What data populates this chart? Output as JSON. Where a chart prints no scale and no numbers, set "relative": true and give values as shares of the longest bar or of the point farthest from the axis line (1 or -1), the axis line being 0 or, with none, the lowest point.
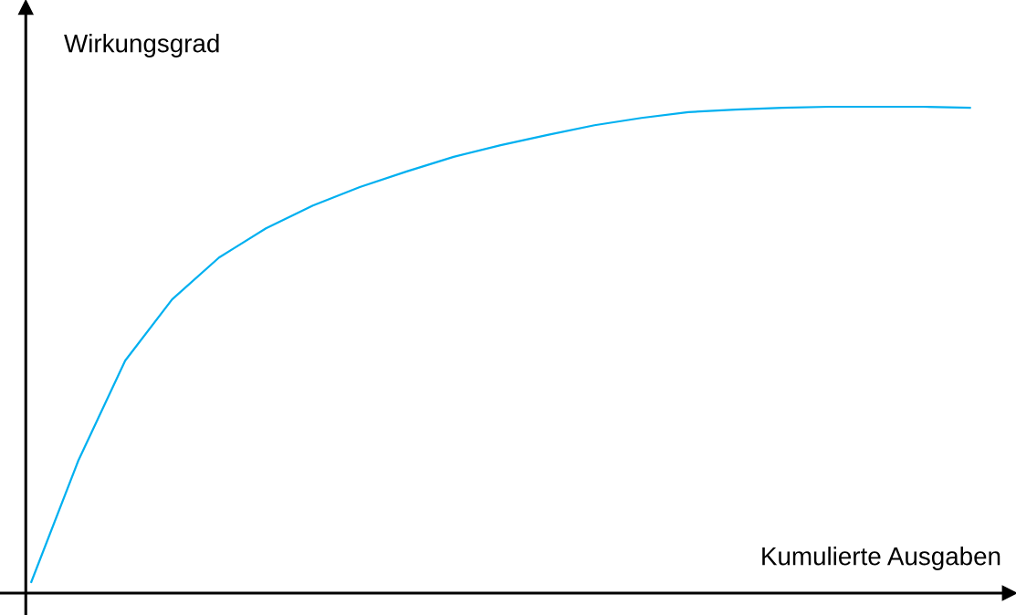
{
  "chart_data": {
    "type": "line",
    "relative": true,
    "xlabel": "Kumulierte Ausgaben",
    "ylabel": "Wirkungsgrad",
    "categories": [
      null,
      null,
      null,
      null,
      null,
      null,
      null,
      null,
      null,
      null,
      null,
      null,
      null,
      null,
      null,
      null,
      null,
      null,
      null,
      null,
      null
    ],
    "series": [
      {
        "color": "#00b0f0",
        "values": [
          0.023,
          0.272,
          0.478,
          0.604,
          0.69,
          0.75,
          0.797,
          0.835,
          0.867,
          0.897,
          0.921,
          0.942,
          0.962,
          0.977,
          0.989,
          0.994,
          0.998,
          1.0,
          1.0,
          1.0,
          0.998
        ]
      }
    ],
    "marker": "none",
    "line_style": "solid"
  }
}
